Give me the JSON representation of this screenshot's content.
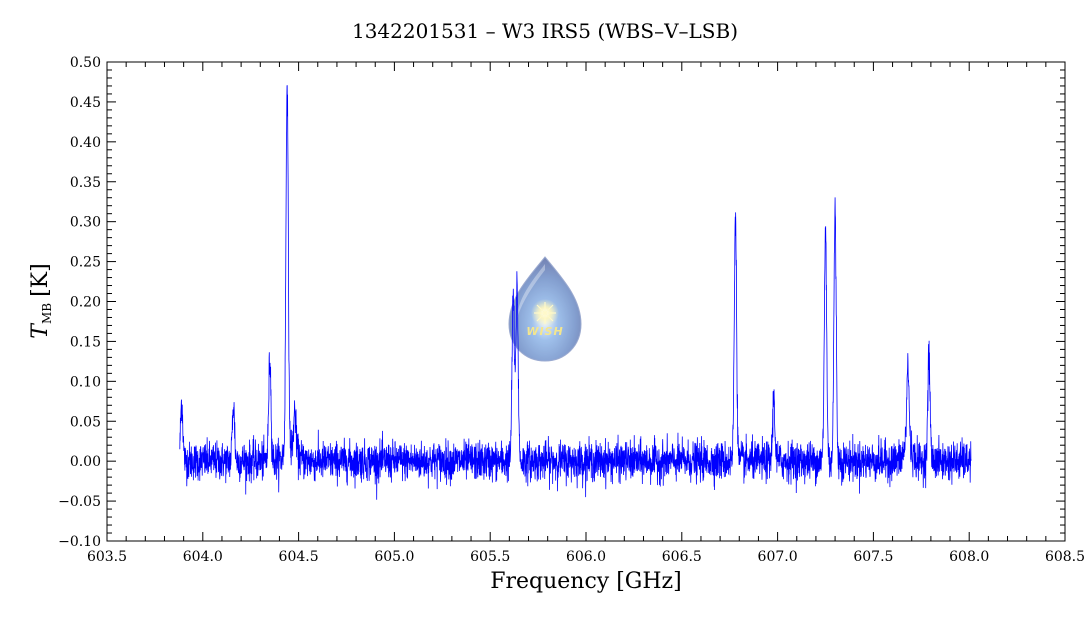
{
  "chart_data": {
    "type": "line",
    "title": "1342201531 – W3 IRS5 (WBS–V–LSB)",
    "xlabel": "Frequency [GHz]",
    "ylabel_main": "T",
    "ylabel_sub": "MB",
    "ylabel_unit": "[K]",
    "xlim": [
      603.5,
      608.5
    ],
    "ylim": [
      -0.1,
      0.5
    ],
    "xticks": [
      "603.5",
      "604.0",
      "604.5",
      "605.0",
      "605.5",
      "606.0",
      "606.5",
      "607.0",
      "607.5",
      "608.0",
      "608.5"
    ],
    "yticks": [
      "−0.10",
      "−0.05",
      "0.00",
      "0.05",
      "0.10",
      "0.15",
      "0.20",
      "0.25",
      "0.30",
      "0.35",
      "0.40",
      "0.45",
      "0.50"
    ],
    "grid": false,
    "series": [
      {
        "color": "#0000ff",
        "x_range": [
          603.88,
          608.01
        ],
        "noise_rms": 0.012,
        "peaks": [
          {
            "x": 603.89,
            "y": 0.075
          },
          {
            "x": 604.16,
            "y": 0.07
          },
          {
            "x": 604.35,
            "y": 0.13
          },
          {
            "x": 604.44,
            "y": 0.465
          },
          {
            "x": 604.48,
            "y": 0.05
          },
          {
            "x": 605.62,
            "y": 0.21
          },
          {
            "x": 605.64,
            "y": 0.22
          },
          {
            "x": 606.78,
            "y": 0.31
          },
          {
            "x": 606.98,
            "y": 0.08
          },
          {
            "x": 607.25,
            "y": 0.29
          },
          {
            "x": 607.3,
            "y": 0.31
          },
          {
            "x": 607.68,
            "y": 0.1
          },
          {
            "x": 607.79,
            "y": 0.13
          }
        ]
      }
    ]
  },
  "logo": {
    "text": "WISH"
  }
}
